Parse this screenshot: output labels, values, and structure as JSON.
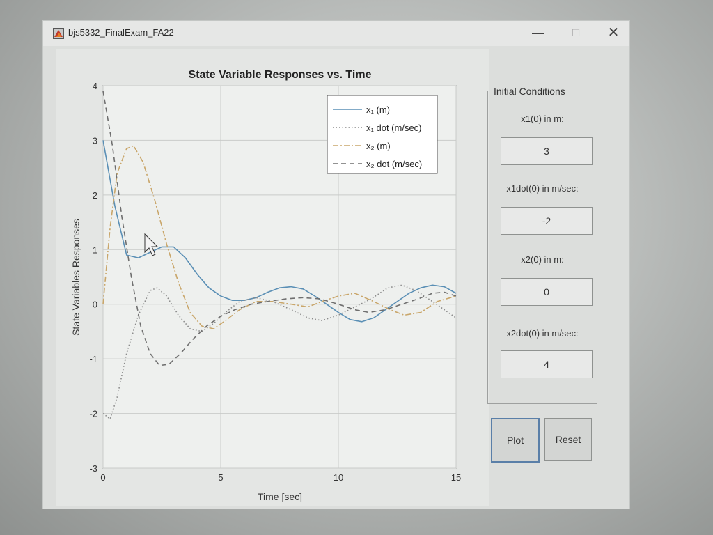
{
  "window": {
    "title": "bjs5332_FinalExam_FA22",
    "controls": {
      "minimize": "—",
      "maximize": "☐",
      "close": "✕"
    },
    "icon": "matlab-icon"
  },
  "chart_data": {
    "type": "line",
    "title": "State Variable Responses vs. Time",
    "xlabel": "Time [sec]",
    "ylabel": "State Variables Responses",
    "xlim": [
      0,
      15
    ],
    "ylim": [
      -3,
      4
    ],
    "xticks": [
      0,
      5,
      10,
      15
    ],
    "yticks": [
      -3,
      -2,
      -1,
      0,
      1,
      2,
      3,
      4
    ],
    "grid": true,
    "legend_position": "top-right",
    "series": [
      {
        "name": "x₁ (m)",
        "style": "solid",
        "color": "#5a8fb5",
        "points": [
          [
            0,
            3
          ],
          [
            0.5,
            1.8
          ],
          [
            1,
            0.9
          ],
          [
            1.5,
            0.85
          ],
          [
            2,
            0.95
          ],
          [
            2.5,
            1.05
          ],
          [
            3,
            1.05
          ],
          [
            3.5,
            0.85
          ],
          [
            4,
            0.55
          ],
          [
            4.5,
            0.3
          ],
          [
            5,
            0.15
          ],
          [
            5.5,
            0.07
          ],
          [
            6,
            0.07
          ],
          [
            6.5,
            0.12
          ],
          [
            7,
            0.22
          ],
          [
            7.5,
            0.3
          ],
          [
            8,
            0.32
          ],
          [
            8.5,
            0.28
          ],
          [
            9,
            0.15
          ],
          [
            9.5,
            0
          ],
          [
            10,
            -0.15
          ],
          [
            10.5,
            -0.28
          ],
          [
            11,
            -0.32
          ],
          [
            11.5,
            -0.25
          ],
          [
            12,
            -0.1
          ],
          [
            12.5,
            0.05
          ],
          [
            13,
            0.2
          ],
          [
            13.5,
            0.3
          ],
          [
            14,
            0.35
          ],
          [
            14.5,
            0.32
          ],
          [
            15,
            0.2
          ]
        ]
      },
      {
        "name": "x₁ dot (m/sec)",
        "style": "dotted",
        "color": "#8a8a8a",
        "points": [
          [
            0,
            -2
          ],
          [
            0.3,
            -2.1
          ],
          [
            0.6,
            -1.7
          ],
          [
            1,
            -0.9
          ],
          [
            1.5,
            -0.2
          ],
          [
            2,
            0.25
          ],
          [
            2.3,
            0.3
          ],
          [
            2.7,
            0.15
          ],
          [
            3.2,
            -0.2
          ],
          [
            3.7,
            -0.45
          ],
          [
            4.2,
            -0.5
          ],
          [
            4.7,
            -0.35
          ],
          [
            5.2,
            -0.15
          ],
          [
            5.8,
            0.05
          ],
          [
            6.5,
            0.12
          ],
          [
            7.2,
            0.05
          ],
          [
            8,
            -0.1
          ],
          [
            8.7,
            -0.25
          ],
          [
            9.3,
            -0.3
          ],
          [
            10,
            -0.2
          ],
          [
            10.7,
            -0.05
          ],
          [
            11.4,
            0.1
          ],
          [
            12.1,
            0.3
          ],
          [
            12.7,
            0.35
          ],
          [
            13.3,
            0.25
          ],
          [
            14,
            0.05
          ],
          [
            14.5,
            -0.1
          ],
          [
            15,
            -0.25
          ]
        ]
      },
      {
        "name": "x₂ (m)",
        "style": "dashdot",
        "color": "#c9a66a",
        "points": [
          [
            0,
            0
          ],
          [
            0.3,
            1.4
          ],
          [
            0.6,
            2.4
          ],
          [
            1,
            2.85
          ],
          [
            1.3,
            2.9
          ],
          [
            1.7,
            2.6
          ],
          [
            2.2,
            1.9
          ],
          [
            2.7,
            1.1
          ],
          [
            3.2,
            0.4
          ],
          [
            3.7,
            -0.15
          ],
          [
            4.2,
            -0.4
          ],
          [
            4.7,
            -0.45
          ],
          [
            5.2,
            -0.3
          ],
          [
            5.8,
            -0.1
          ],
          [
            6.5,
            0.05
          ],
          [
            7.2,
            0.05
          ],
          [
            8,
            0
          ],
          [
            8.7,
            -0.05
          ],
          [
            9.3,
            0.05
          ],
          [
            10,
            0.15
          ],
          [
            10.7,
            0.2
          ],
          [
            11.5,
            0.05
          ],
          [
            12.2,
            -0.1
          ],
          [
            12.8,
            -0.2
          ],
          [
            13.5,
            -0.15
          ],
          [
            14.2,
            0.05
          ],
          [
            15,
            0.15
          ]
        ]
      },
      {
        "name": "x₂ dot (m/sec)",
        "style": "dashed",
        "color": "#6f6f6f",
        "points": [
          [
            0,
            3.9
          ],
          [
            0.4,
            2.9
          ],
          [
            0.8,
            1.6
          ],
          [
            1.2,
            0.5
          ],
          [
            1.6,
            -0.4
          ],
          [
            2,
            -0.9
          ],
          [
            2.4,
            -1.12
          ],
          [
            2.8,
            -1.1
          ],
          [
            3.3,
            -0.9
          ],
          [
            3.8,
            -0.65
          ],
          [
            4.4,
            -0.4
          ],
          [
            5,
            -0.22
          ],
          [
            5.6,
            -0.1
          ],
          [
            6.3,
            0
          ],
          [
            7,
            0.05
          ],
          [
            7.8,
            0.1
          ],
          [
            8.5,
            0.12
          ],
          [
            9.2,
            0.1
          ],
          [
            10,
            0
          ],
          [
            10.7,
            -0.1
          ],
          [
            11.3,
            -0.15
          ],
          [
            12,
            -0.1
          ],
          [
            12.7,
            0
          ],
          [
            13.4,
            0.1
          ],
          [
            14,
            0.2
          ],
          [
            14.5,
            0.22
          ],
          [
            15,
            0.15
          ]
        ]
      }
    ]
  },
  "panel": {
    "title": "Initial Conditions",
    "fields": [
      {
        "label": "x1(0) in m:",
        "value": "3"
      },
      {
        "label": "x1dot(0) in m/sec:",
        "value": "-2"
      },
      {
        "label": "x2(0) in m:",
        "value": "0"
      },
      {
        "label": "x2dot(0) in m/sec:",
        "value": "4"
      }
    ]
  },
  "buttons": {
    "plot": "Plot",
    "reset": "Reset"
  }
}
